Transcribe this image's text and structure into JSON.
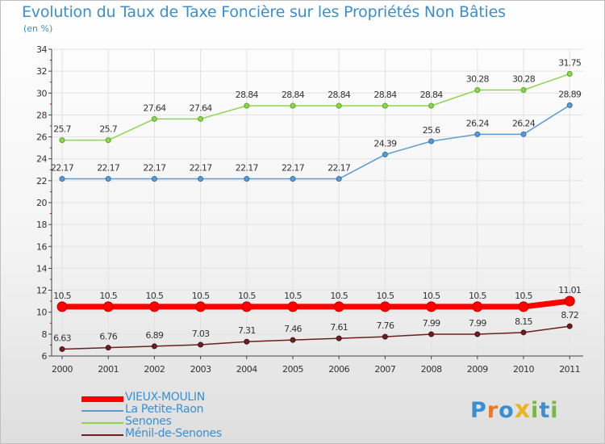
{
  "title": "Evolution du Taux de Taxe Foncière sur les Propriétés Non Bâties",
  "unit_label": "(en %)",
  "logo": {
    "text": "Proxiti",
    "letters": [
      "P",
      "r",
      "o",
      "x",
      "i",
      "t",
      "i"
    ],
    "colors": [
      "#3b8fd1",
      "#e8782a",
      "#3b8fd1",
      "#e8b52a",
      "#7ab648",
      "#3b8fd1",
      "#7ab648"
    ]
  },
  "chart_data": {
    "type": "line",
    "title": "Evolution du Taux de Taxe Foncière sur les Propriétés Non Bâties",
    "ylabel": "(en %)",
    "xlabel": "",
    "ylim": [
      6,
      34
    ],
    "yticks": [
      6,
      8,
      10,
      12,
      14,
      16,
      18,
      20,
      22,
      24,
      26,
      28,
      30,
      32,
      34
    ],
    "categories": [
      "2000",
      "2001",
      "2002",
      "2003",
      "2004",
      "2005",
      "2006",
      "2007",
      "2008",
      "2009",
      "2010",
      "2011"
    ],
    "grid": true,
    "legend_position": "bottom-left",
    "series": [
      {
        "name": "Senones",
        "color": "#8ed650",
        "values": [
          25.7,
          25.7,
          27.64,
          27.64,
          28.84,
          28.84,
          28.84,
          28.84,
          28.84,
          30.28,
          30.28,
          31.75
        ],
        "labels": [
          "25.7",
          "25.7",
          "27.64",
          "27.64",
          "28.84",
          "28.84",
          "28.84",
          "28.84",
          "28.84",
          "30.28",
          "30.28",
          "31.75"
        ]
      },
      {
        "name": "La Petite-Raon",
        "color": "#5b9bd1",
        "values": [
          22.17,
          22.17,
          22.17,
          22.17,
          22.17,
          22.17,
          22.17,
          24.39,
          25.6,
          26.24,
          26.24,
          28.89
        ],
        "labels": [
          "22.17",
          "22.17",
          "22.17",
          "22.17",
          "22.17",
          "22.17",
          "22.17",
          "24.39",
          "25.6",
          "26.24",
          "26.24",
          "28.89"
        ]
      },
      {
        "name": "VIEUX-MOULIN",
        "color": "#ff0000",
        "values": [
          10.5,
          10.5,
          10.5,
          10.5,
          10.5,
          10.5,
          10.5,
          10.5,
          10.5,
          10.5,
          10.5,
          11.01
        ],
        "labels": [
          "10.5",
          "10.5",
          "10.5",
          "10.5",
          "10.5",
          "10.5",
          "10.5",
          "10.5",
          "10.5",
          "10.5",
          "10.5",
          "11.01"
        ]
      },
      {
        "name": "Ménil-de-Senones",
        "color": "#6b2020",
        "values": [
          6.63,
          6.76,
          6.89,
          7.03,
          7.31,
          7.46,
          7.61,
          7.76,
          7.99,
          7.99,
          8.15,
          8.72
        ],
        "labels": [
          "6.63",
          "6.76",
          "6.89",
          "7.03",
          "7.31",
          "7.46",
          "7.61",
          "7.76",
          "7.99",
          "7.99",
          "8.15",
          "8.72"
        ]
      }
    ],
    "legend_order": [
      "VIEUX-MOULIN",
      "La Petite-Raon",
      "Senones",
      "Ménil-de-Senones"
    ]
  }
}
